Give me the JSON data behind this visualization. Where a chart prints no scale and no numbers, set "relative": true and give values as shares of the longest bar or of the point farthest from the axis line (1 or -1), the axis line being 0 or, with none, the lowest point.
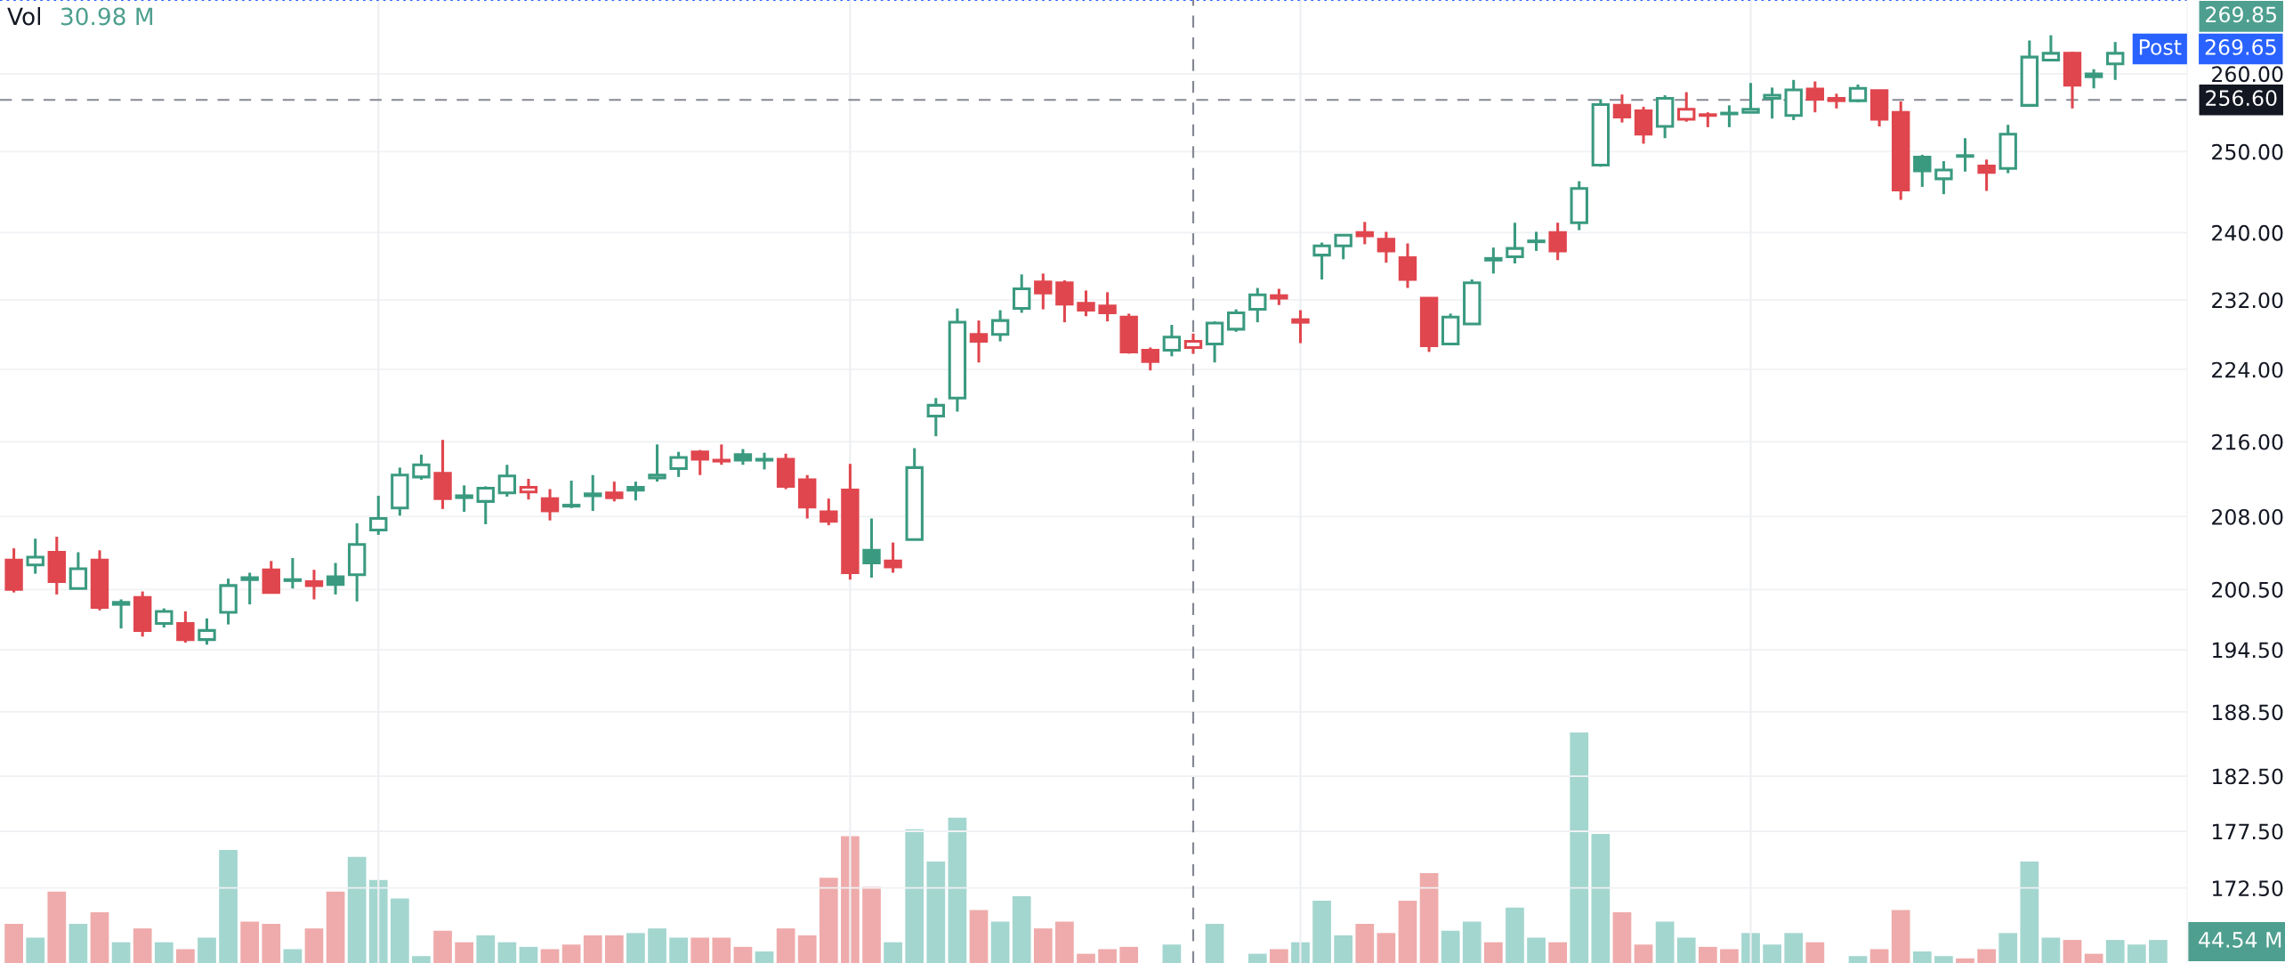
{
  "chart_data": [
    {
      "type": "candlestick",
      "categories": [
        null,
        null,
        null,
        null,
        null,
        null,
        null,
        null,
        null,
        null,
        null,
        null,
        null,
        null,
        null,
        null,
        null,
        null,
        null,
        null,
        null,
        null,
        null,
        null,
        null,
        null,
        null,
        null,
        null,
        null,
        null,
        null,
        null,
        null,
        null,
        null,
        null,
        null,
        null,
        null,
        null,
        null,
        null,
        null,
        null,
        null,
        null,
        null,
        null,
        null,
        null,
        null,
        null,
        null,
        null,
        null,
        null,
        null,
        null,
        null,
        null,
        null,
        null,
        null,
        null,
        null,
        null,
        null,
        null,
        null,
        null,
        null,
        null,
        null,
        null,
        null,
        null,
        null,
        null,
        null,
        null,
        null,
        null,
        null,
        null,
        null,
        null,
        null,
        null,
        null,
        null,
        null,
        null,
        null,
        null,
        null,
        null,
        null,
        null,
        null,
        null,
        null
      ],
      "ohlc": [
        [
          203.5,
          204.7,
          200.2,
          200.5
        ],
        [
          203.0,
          205.7,
          202.1,
          203.8
        ],
        [
          204.3,
          205.9,
          200.0,
          201.3
        ],
        [
          200.6,
          204.3,
          200.6,
          202.6
        ],
        [
          203.5,
          204.5,
          198.4,
          198.7
        ],
        [
          199.0,
          199.5,
          196.6,
          199.2
        ],
        [
          199.7,
          200.3,
          195.8,
          196.4
        ],
        [
          197.1,
          198.6,
          196.7,
          198.3
        ],
        [
          197.1,
          198.3,
          195.2,
          195.5
        ],
        [
          195.5,
          197.6,
          195.0,
          196.4
        ],
        [
          198.2,
          201.6,
          197.0,
          200.9
        ],
        [
          201.5,
          202.2,
          199.0,
          201.7
        ],
        [
          202.5,
          203.4,
          200.2,
          200.2
        ],
        [
          201.4,
          203.7,
          200.6,
          201.5
        ],
        [
          201.3,
          202.5,
          199.5,
          200.9
        ],
        [
          201.8,
          203.2,
          200.0,
          201.0
        ],
        [
          202.0,
          207.3,
          199.3,
          205.1
        ],
        [
          206.6,
          210.2,
          206.1,
          207.8
        ],
        [
          208.9,
          213.2,
          208.1,
          212.4
        ],
        [
          212.2,
          214.6,
          211.9,
          213.5
        ],
        [
          212.6,
          216.2,
          208.8,
          209.9
        ],
        [
          210.0,
          211.3,
          208.5,
          210.2
        ],
        [
          209.6,
          211.2,
          207.2,
          211.0
        ],
        [
          210.5,
          213.5,
          210.1,
          212.3
        ],
        [
          210.6,
          212.0,
          209.8,
          211.1
        ],
        [
          209.9,
          210.9,
          207.6,
          208.6
        ],
        [
          209.1,
          211.8,
          208.9,
          209.2
        ],
        [
          210.2,
          212.4,
          208.6,
          210.4
        ],
        [
          210.5,
          211.7,
          209.6,
          210.0
        ],
        [
          211.1,
          211.7,
          209.7,
          210.8
        ],
        [
          212.1,
          215.7,
          211.7,
          212.4
        ],
        [
          213.1,
          214.9,
          212.2,
          214.3
        ],
        [
          214.9,
          215.1,
          212.4,
          214.1
        ],
        [
          214.0,
          215.7,
          213.5,
          213.9
        ],
        [
          214.6,
          215.2,
          213.5,
          214.0
        ],
        [
          214.0,
          214.8,
          213.0,
          214.1
        ],
        [
          214.1,
          214.7,
          210.9,
          211.2
        ],
        [
          211.9,
          212.4,
          207.8,
          209.0
        ],
        [
          208.5,
          209.9,
          207.1,
          207.5
        ],
        [
          210.8,
          213.6,
          201.5,
          202.2
        ],
        [
          204.5,
          207.8,
          201.7,
          203.2
        ],
        [
          203.4,
          205.3,
          202.2,
          202.8
        ],
        [
          205.6,
          215.3,
          205.6,
          213.2
        ],
        [
          218.8,
          220.8,
          216.6,
          220.0
        ],
        [
          220.8,
          231.0,
          219.3,
          229.4
        ],
        [
          228.0,
          229.6,
          224.8,
          227.2
        ],
        [
          228.0,
          230.8,
          227.2,
          229.6
        ],
        [
          231.0,
          235.0,
          230.5,
          233.3
        ],
        [
          234.1,
          235.1,
          230.9,
          232.8
        ],
        [
          234.0,
          234.3,
          229.4,
          231.5
        ],
        [
          231.6,
          233.1,
          230.1,
          230.8
        ],
        [
          231.3,
          232.9,
          229.5,
          230.5
        ],
        [
          230.0,
          230.4,
          225.8,
          226.0
        ],
        [
          226.2,
          226.5,
          223.9,
          224.9
        ],
        [
          226.2,
          229.1,
          225.5,
          227.7
        ],
        [
          226.5,
          228.1,
          225.8,
          227.2
        ],
        [
          226.9,
          229.5,
          224.8,
          229.3
        ],
        [
          228.6,
          230.9,
          228.3,
          230.5
        ],
        [
          230.9,
          233.4,
          229.4,
          232.6
        ],
        [
          232.5,
          233.3,
          231.4,
          232.2
        ],
        [
          229.4,
          230.8,
          227.0,
          229.7
        ],
        [
          237.3,
          238.8,
          234.4,
          238.4
        ],
        [
          238.4,
          239.8,
          236.8,
          239.7
        ],
        [
          240.0,
          241.3,
          238.6,
          239.6
        ],
        [
          239.2,
          240.1,
          236.4,
          237.8
        ],
        [
          237.0,
          238.7,
          233.4,
          234.4
        ],
        [
          232.2,
          232.3,
          226.0,
          226.7
        ],
        [
          226.9,
          230.4,
          226.8,
          230.0
        ],
        [
          229.2,
          234.4,
          229.1,
          234.0
        ],
        [
          236.9,
          238.2,
          235.1,
          236.7
        ],
        [
          237.1,
          241.2,
          236.3,
          238.1
        ],
        [
          238.9,
          240.1,
          237.8,
          239.0
        ],
        [
          240.0,
          241.2,
          236.7,
          237.8
        ],
        [
          241.2,
          246.3,
          240.3,
          245.4
        ],
        [
          248.3,
          256.7,
          248.1,
          256.0
        ],
        [
          255.9,
          257.3,
          253.7,
          254.4
        ],
        [
          255.2,
          255.7,
          251.0,
          252.2
        ],
        [
          253.2,
          257.2,
          251.7,
          256.8
        ],
        [
          254.1,
          257.6,
          253.8,
          255.4
        ],
        [
          254.7,
          255.0,
          253.1,
          254.6
        ],
        [
          254.8,
          255.9,
          253.1,
          254.9
        ],
        [
          255.0,
          258.8,
          255.0,
          255.4
        ],
        [
          256.8,
          258.2,
          254.2,
          257.2
        ],
        [
          254.6,
          259.2,
          254.0,
          257.9
        ],
        [
          258.0,
          259.0,
          255.0,
          256.7
        ],
        [
          256.8,
          257.4,
          255.5,
          256.5
        ],
        [
          256.5,
          258.6,
          256.3,
          258.1
        ],
        [
          257.8,
          257.9,
          253.2,
          254.1
        ],
        [
          255.0,
          256.4,
          244.0,
          245.2
        ],
        [
          249.3,
          249.6,
          245.6,
          247.6
        ],
        [
          246.6,
          248.8,
          244.7,
          247.7
        ],
        [
          249.4,
          251.7,
          247.5,
          249.5
        ],
        [
          248.2,
          249.0,
          245.1,
          247.4
        ],
        [
          247.9,
          253.4,
          247.3,
          252.2
        ],
        [
          255.9,
          264.4,
          255.7,
          262.2
        ],
        [
          261.8,
          265.1,
          261.8,
          262.7
        ],
        [
          262.7,
          262.9,
          255.5,
          258.5
        ],
        [
          260.0,
          260.6,
          258.1,
          259.6
        ],
        [
          261.3,
          264.2,
          259.2,
          262.7
        ],
        null,
        null,
        null
      ],
      "colors": [
        "#e0464e",
        "#3a9a80",
        "#e0464e",
        "#3a9a80",
        "#e0464e",
        "#3a9a80",
        "#e0464e",
        "#3a9a80",
        "#e0464e",
        "#3a9a80",
        "#3a9a80",
        "#3a9a80",
        "#e0464e",
        "#3a9a80",
        "#e0464e",
        "#3a9a80",
        "#3a9a80",
        "#3a9a80",
        "#3a9a80",
        "#3a9a80",
        "#e0464e",
        "#3a9a80",
        "#3a9a80",
        "#3a9a80",
        "#e0464e",
        "#e0464e",
        "#3a9a80",
        "#3a9a80",
        "#e0464e",
        "#3a9a80",
        "#3a9a80",
        "#3a9a80",
        "#e0464e",
        "#e0464e",
        "#3a9a80",
        "#3a9a80",
        "#e0464e",
        "#e0464e",
        "#e0464e",
        "#e0464e",
        "#3a9a80",
        "#e0464e",
        "#3a9a80",
        "#3a9a80",
        "#3a9a80",
        "#e0464e",
        "#3a9a80",
        "#3a9a80",
        "#e0464e",
        "#e0464e",
        "#e0464e",
        "#e0464e",
        "#e0464e",
        "#e0464e",
        "#3a9a80",
        "#e0464e",
        "#3a9a80",
        "#3a9a80",
        "#3a9a80",
        "#e0464e",
        "#e0464e",
        "#3a9a80",
        "#3a9a80",
        "#e0464e",
        "#e0464e",
        "#e0464e",
        "#e0464e",
        "#3a9a80",
        "#3a9a80",
        "#3a9a80",
        "#3a9a80",
        "#3a9a80",
        "#e0464e",
        "#3a9a80",
        "#3a9a80",
        "#e0464e",
        "#e0464e",
        "#3a9a80",
        "#e0464e",
        "#e0464e",
        "#3a9a80",
        "#3a9a80",
        "#3a9a80",
        "#3a9a80",
        "#e0464e",
        "#e0464e",
        "#3a9a80",
        "#e0464e",
        "#e0464e",
        "#3a9a80",
        "#3a9a80",
        "#3a9a80",
        "#e0464e",
        "#3a9a80",
        "#3a9a80",
        "#3a9a80",
        "#e0464e",
        "#3a9a80",
        "#3a9a80",
        "#3a9a80",
        "#3a9a80",
        null
      ],
      "log": true,
      "ylim": [
        166.1,
        269.85
      ],
      "yticks": [
        {
          "value": 172.5,
          "label": "172.50"
        },
        {
          "value": 177.5,
          "label": "177.50"
        },
        {
          "value": 182.5,
          "label": "182.50"
        },
        {
          "value": 188.5,
          "label": "188.50"
        },
        {
          "value": 194.5,
          "label": "194.50"
        },
        {
          "value": 200.5,
          "label": "200.50"
        },
        {
          "value": 208,
          "label": "208.00"
        },
        {
          "value": 216,
          "label": "216.00"
        },
        {
          "value": 224,
          "label": "224.00"
        },
        {
          "value": 232,
          "label": "232.00"
        },
        {
          "value": 240,
          "label": "240.00"
        },
        {
          "value": 250,
          "label": "250.00"
        },
        {
          "value": 260,
          "label": "260.00"
        }
      ],
      "grid": "y",
      "tick_labels": "y",
      "ref_lines": [
        {
          "axis": "y",
          "value": 256.6,
          "label": "256.60",
          "color": "#868993",
          "line_style": "dashed"
        },
        {
          "axis": "y",
          "value": 269.85,
          "label": "269.85",
          "color": "#2962ff",
          "line_style": "dotted"
        }
      ],
      "annotations": [
        "Vol",
        "30.98 M",
        "Post",
        "269.65",
        "44.54 M"
      ]
    },
    {
      "type": "bar",
      "relative": true,
      "tick_labels": false,
      "categories": [
        null,
        null,
        null,
        null,
        null,
        null,
        null,
        null,
        null,
        null,
        null,
        null,
        null,
        null,
        null,
        null,
        null,
        null,
        null,
        null,
        null,
        null,
        null,
        null,
        null,
        null,
        null,
        null,
        null,
        null,
        null,
        null,
        null,
        null,
        null,
        null,
        null,
        null,
        null,
        null,
        null,
        null,
        null,
        null,
        null,
        null,
        null,
        null,
        null,
        null,
        null,
        null,
        null,
        null,
        null,
        null,
        null,
        null,
        null,
        null,
        null,
        null,
        null,
        null,
        null,
        null,
        null,
        null,
        null,
        null,
        null,
        null,
        null,
        null,
        null,
        null,
        null,
        null,
        null,
        null,
        null,
        null,
        null,
        null,
        null,
        null,
        null,
        null,
        null,
        null,
        null,
        null,
        null,
        null,
        null,
        null,
        null,
        null,
        null,
        null,
        null,
        null
      ],
      "values": [
        0.17,
        0.11,
        0.31,
        0.17,
        0.22,
        0.09,
        0.15,
        0.09,
        0.06,
        0.11,
        0.49,
        0.18,
        0.17,
        0.06,
        0.15,
        0.31,
        0.46,
        0.36,
        0.28,
        0.03,
        0.14,
        0.09,
        0.12,
        0.09,
        0.07,
        0.06,
        0.08,
        0.12,
        0.12,
        0.13,
        0.15,
        0.11,
        0.11,
        0.11,
        0.07,
        0.05,
        0.15,
        0.12,
        0.37,
        0.55,
        0.33,
        0.09,
        0.58,
        0.44,
        0.63,
        0.23,
        0.18,
        0.29,
        0.15,
        0.18,
        0.04,
        0.06,
        0.07,
        0,
        0.08,
        0,
        0.17,
        0,
        0.04,
        0.06,
        0.09,
        0.27,
        0.12,
        0.17,
        0.13,
        0.27,
        0.39,
        0.14,
        0.18,
        0.09,
        0.24,
        0.11,
        0.09,
        1,
        0.56,
        0.22,
        0.08,
        0.18,
        0.11,
        0.07,
        0.06,
        0.13,
        0.08,
        0.13,
        0.09,
        0,
        0.03,
        0.06,
        0.23,
        0.05,
        0.03,
        0.02,
        0.06,
        0.13,
        0.44,
        0.11,
        0.1,
        0.04,
        0.1,
        0.08,
        0.1,
        null
      ],
      "colors": [
        "#efabab",
        "#a3d6cf",
        "#efabab",
        "#a3d6cf",
        "#efabab",
        "#a3d6cf",
        "#efabab",
        "#a3d6cf",
        "#efabab",
        "#a3d6cf",
        "#a3d6cf",
        "#efabab",
        "#efabab",
        "#a3d6cf",
        "#efabab",
        "#efabab",
        "#a3d6cf",
        "#a3d6cf",
        "#a3d6cf",
        "#a3d6cf",
        "#efabab",
        "#efabab",
        "#a3d6cf",
        "#a3d6cf",
        "#a3d6cf",
        "#efabab",
        "#efabab",
        "#efabab",
        "#efabab",
        "#a3d6cf",
        "#a3d6cf",
        "#a3d6cf",
        "#efabab",
        "#efabab",
        "#efabab",
        "#a3d6cf",
        "#efabab",
        "#efabab",
        "#efabab",
        "#efabab",
        "#efabab",
        "#a3d6cf",
        "#a3d6cf",
        "#a3d6cf",
        "#a3d6cf",
        "#efabab",
        "#a3d6cf",
        "#a3d6cf",
        "#efabab",
        "#efabab",
        "#efabab",
        "#efabab",
        "#efabab",
        "#a3d6cf",
        "#a3d6cf",
        "#efabab",
        "#a3d6cf",
        "#a3d6cf",
        "#a3d6cf",
        "#efabab",
        "#a3d6cf",
        "#a3d6cf",
        "#a3d6cf",
        "#efabab",
        "#efabab",
        "#efabab",
        "#efabab",
        "#a3d6cf",
        "#a3d6cf",
        "#efabab",
        "#a3d6cf",
        "#a3d6cf",
        "#efabab",
        "#a3d6cf",
        "#a3d6cf",
        "#efabab",
        "#efabab",
        "#a3d6cf",
        "#a3d6cf",
        "#efabab",
        "#efabab",
        "#a3d6cf",
        "#a3d6cf",
        "#a3d6cf",
        "#efabab",
        "#a3d6cf",
        "#a3d6cf",
        "#efabab",
        "#efabab",
        "#a3d6cf",
        "#a3d6cf",
        "#efabab",
        "#efabab",
        "#a3d6cf",
        "#a3d6cf",
        "#a3d6cf",
        "#efabab",
        "#efabab",
        "#a3d6cf",
        "#a3d6cf",
        "#a3d6cf",
        null
      ]
    }
  ]
}
